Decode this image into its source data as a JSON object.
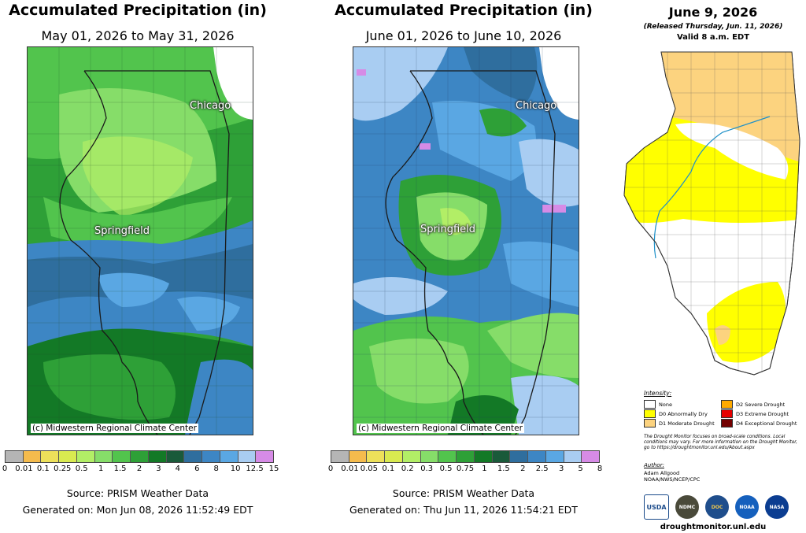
{
  "may_panel": {
    "title": "Accumulated Precipitation (in)",
    "dates": "May 01, 2026 to May 31, 2026",
    "cities": [
      "Chicago",
      "Springfield"
    ],
    "credit": "(c) Midwestern Regional Climate Center",
    "legend_colors": [
      "#b5b5b5",
      "#f5bb4d",
      "#ede05a",
      "#d9ea50",
      "#b2ee66",
      "#86dd69",
      "#52c44d",
      "#2ea037",
      "#137926",
      "#1a5a3a",
      "#2f6e9e",
      "#3d86c4",
      "#5aa7e3",
      "#a9cdf2",
      "#d68be6"
    ],
    "legend_ticks": [
      "0",
      "0.01",
      "0.1",
      "0.25",
      "0.5",
      "1",
      "1.5",
      "2",
      "3",
      "4",
      "6",
      "8",
      "10",
      "12.5",
      "15"
    ],
    "source": "Source: PRISM Weather Data",
    "generated": "Generated on: Mon Jun 08, 2026 11:52:49 EDT"
  },
  "june_panel": {
    "title": "Accumulated Precipitation (in)",
    "dates": "June 01, 2026 to June 10, 2026",
    "cities": [
      "Chicago",
      "Springfield"
    ],
    "credit": "(c) Midwestern Regional Climate Center",
    "legend_colors": [
      "#b5b5b5",
      "#f5bb4d",
      "#ede05a",
      "#d9ea50",
      "#b2ee66",
      "#86dd69",
      "#52c44d",
      "#2ea037",
      "#137926",
      "#1a5a3a",
      "#2f6e9e",
      "#3d86c4",
      "#5aa7e3",
      "#a9cdf2",
      "#d68be6"
    ],
    "legend_ticks": [
      "0",
      "0.01",
      "0.05",
      "0.1",
      "0.2",
      "0.3",
      "0.5",
      "0.75",
      "1",
      "1.5",
      "2",
      "2.5",
      "3",
      "5",
      "8"
    ],
    "source": "Source: PRISM Weather Data",
    "generated": "Generated on: Thu Jun 11, 2026 11:54:21 EDT"
  },
  "drought_panel": {
    "title": "June 9, 2026",
    "released": "(Released Thursday, Jun. 11, 2026)",
    "valid": "Valid 8 a.m. EDT",
    "intensity_label": "Intensity:",
    "items": [
      {
        "label": "None",
        "color": "#ffffff"
      },
      {
        "label": "D0 Abnormally Dry",
        "color": "#ffff00"
      },
      {
        "label": "D1 Moderate Drought",
        "color": "#fcd37f"
      },
      {
        "label": "D2 Severe Drought",
        "color": "#ffaa00"
      },
      {
        "label": "D3 Extreme Drought",
        "color": "#e60000"
      },
      {
        "label": "D4 Exceptional Drought",
        "color": "#730000"
      }
    ],
    "note": "The Drought Monitor focuses on broad-scale conditions. Local conditions may vary. For more information on the Drought Monitor, go to https://droughtmonitor.unl.edu/About.aspx",
    "author_label": "Author:",
    "author_name": "Adam Allgood",
    "author_org": "NOAA/NWS/NCEP/CPC",
    "logos": [
      "USDA",
      "NDMC",
      "DOC",
      "NOAA",
      "NASA"
    ],
    "site": "droughtmonitor.unl.edu"
  }
}
